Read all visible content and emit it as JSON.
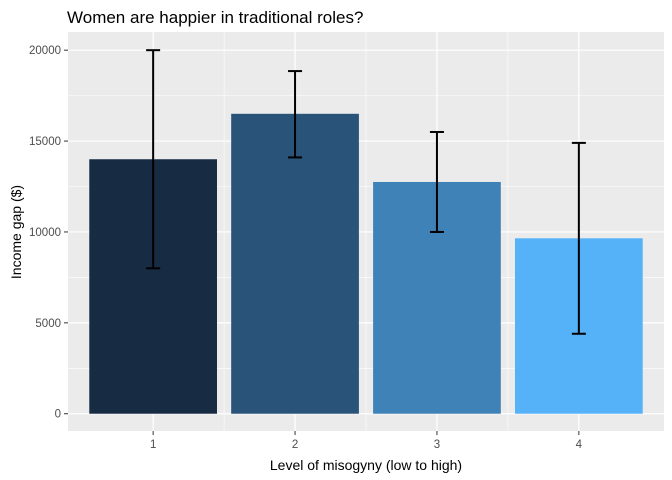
{
  "chart_data": {
    "type": "bar",
    "title": "Women are happier in traditional roles?",
    "xlabel": "Level of misogyny (low to high)",
    "ylabel": "Income gap ($)",
    "categories": [
      "1",
      "2",
      "3",
      "4"
    ],
    "values": [
      14000,
      16500,
      12750,
      9650
    ],
    "error_low": [
      8000,
      14100,
      10000,
      4400
    ],
    "error_high": [
      20000,
      18850,
      15500,
      14900
    ],
    "ylim": [
      -950,
      21000
    ],
    "yticks": [
      0,
      5000,
      10000,
      15000,
      20000
    ],
    "ytick_labels": [
      "0",
      "5000",
      "10000",
      "15000",
      "20000"
    ],
    "bar_colors": [
      "#172b43",
      "#2a5379",
      "#3f82b8",
      "#56b2f8"
    ],
    "grid": true,
    "panel_background": "#ebebeb",
    "grid_color": "#ffffff"
  }
}
